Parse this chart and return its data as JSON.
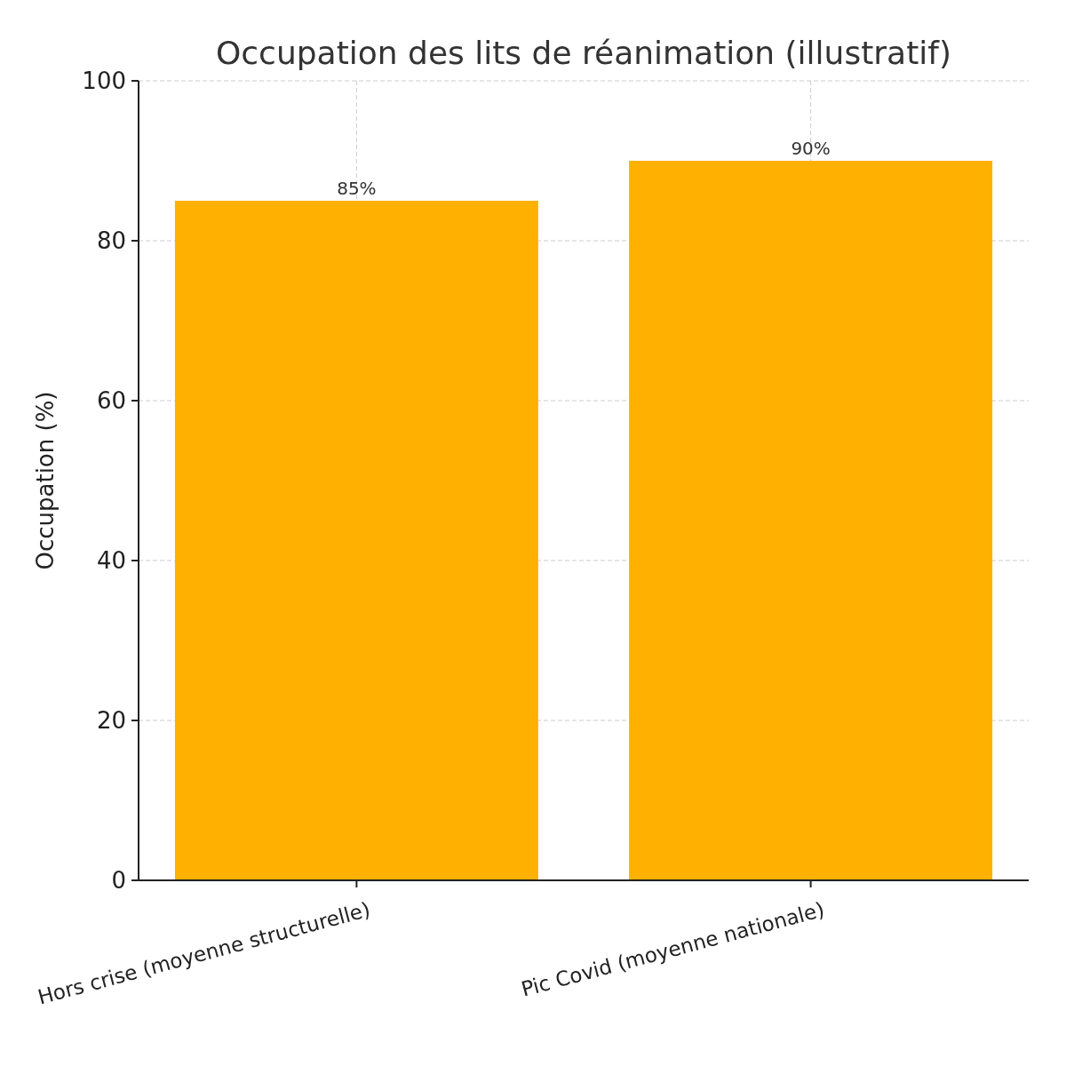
{
  "chart_data": {
    "type": "bar",
    "title": "Occupation des lits de réanimation (illustratif)",
    "ylabel": "Occupation (%)",
    "categories": [
      "Hors crise (moyenne structurelle)",
      "Pic Covid (moyenne nationale)"
    ],
    "values": [
      85,
      90
    ],
    "color": "#ffb000",
    "value_labels": [
      "85%",
      "90%"
    ],
    "ylim": [
      0,
      100
    ],
    "yticks": [
      0,
      20,
      40,
      60,
      80,
      100
    ],
    "grid": true
  }
}
